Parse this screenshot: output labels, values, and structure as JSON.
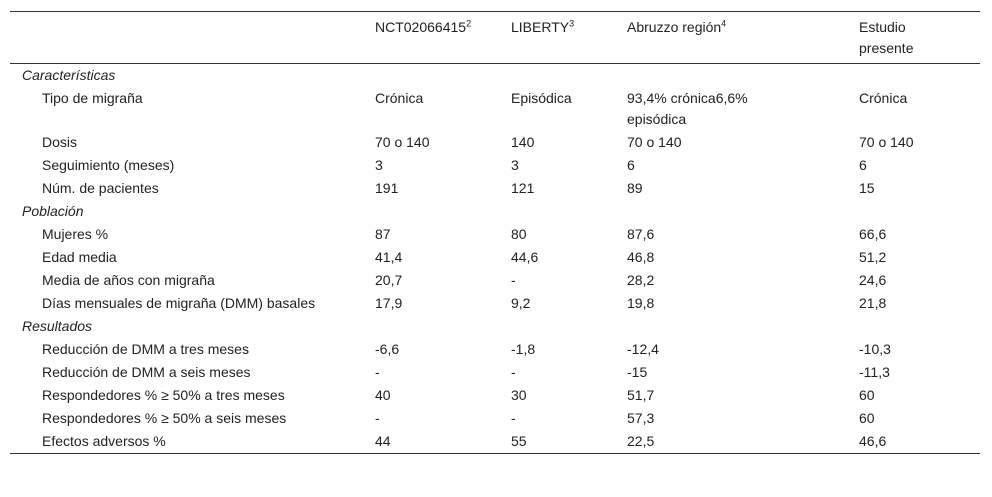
{
  "table": {
    "header": [
      {
        "text": "NCT02066415",
        "sup": "2"
      },
      {
        "text": "LIBERTY",
        "sup": "3"
      },
      {
        "text": "Abruzzo región",
        "sup": "4"
      },
      {
        "text": "Estudio presente"
      }
    ],
    "sections": [
      {
        "title": "Características",
        "rows": [
          [
            "Tipo de migraña",
            "Crónica",
            "Episódica",
            "93,4% crónica6,6% episódica",
            "Crónica"
          ],
          [
            "Dosis",
            "70 o 140",
            "140",
            "70 o 140",
            "70 o 140"
          ],
          [
            "Seguimiento (meses)",
            "3",
            "3",
            "6",
            "6"
          ],
          [
            "Núm. de pacientes",
            "191",
            "121",
            "89",
            "15"
          ]
        ]
      },
      {
        "title": "Población",
        "rows": [
          [
            "Mujeres %",
            "87",
            "80",
            "87,6",
            "66,6"
          ],
          [
            "Edad media",
            "41,4",
            "44,6",
            "46,8",
            "51,2"
          ],
          [
            "Media de años con migraña",
            "20,7",
            "-",
            "28,2",
            "24,6"
          ],
          [
            "Días mensuales de migraña (DMM) basales",
            "17,9",
            "9,2",
            "19,8",
            "21,8"
          ]
        ]
      },
      {
        "title": "Resultados",
        "rows": [
          [
            "Reducción de DMM a tres meses",
            "-6,6",
            "-1,8",
            "-12,4",
            "-10,3"
          ],
          [
            "Reducción de DMM a seis meses",
            "-",
            "-",
            "-15",
            "-11,3"
          ],
          [
            "Respondedores % ≥ 50% a tres meses",
            "40",
            "30",
            "51,7",
            "60"
          ],
          [
            "Respondedores % ≥ 50% a seis meses",
            "-",
            "-",
            "57,3",
            "60"
          ],
          [
            "Efectos adversos %",
            "44",
            "55",
            "22,5",
            "46,6"
          ]
        ]
      }
    ]
  }
}
